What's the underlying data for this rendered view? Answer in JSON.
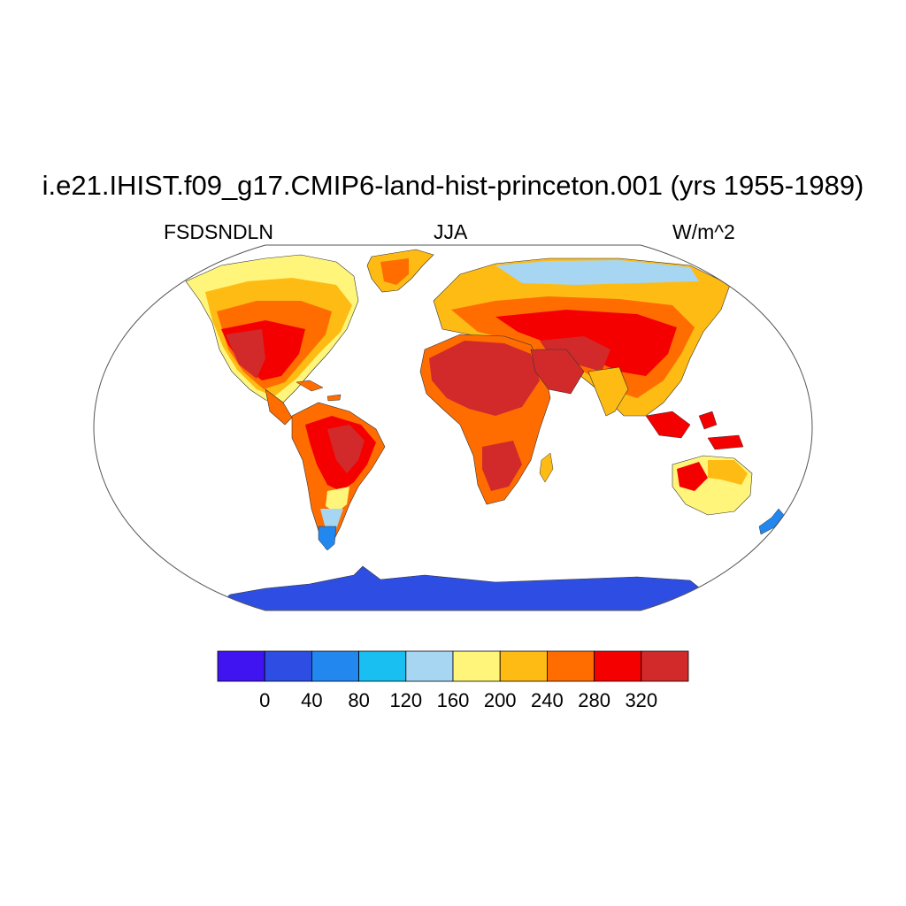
{
  "title": "i.e21.IHIST.f09_g17.CMIP6-land-hist-princeton.001 (yrs 1955-1989)",
  "variable": "FSDSNDLN",
  "season": "JJA",
  "units": "W/m^2",
  "colorbar": {
    "colors": [
      "#3f14f0",
      "#2e4ee3",
      "#2287ee",
      "#19bff0",
      "#a6d6f2",
      "#fff57a",
      "#fdbb14",
      "#ff6d00",
      "#f50000",
      "#d22a2a"
    ],
    "tick_labels": [
      "0",
      "40",
      "80",
      "120",
      "160",
      "200",
      "240",
      "280",
      "320"
    ]
  }
}
